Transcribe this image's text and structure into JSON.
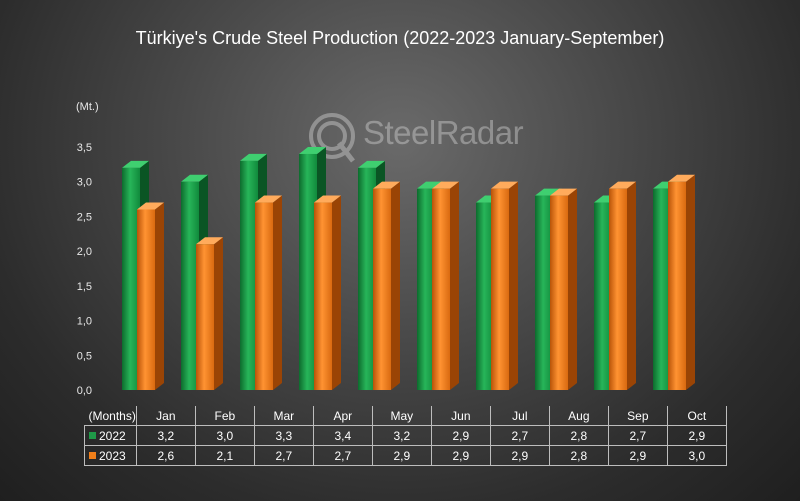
{
  "chart_data": {
    "type": "bar",
    "title": "Türkiye's Crude Steel Production (2022-2023 January-September)",
    "ylabel": "(Mt.)",
    "xlabel": "(Months)",
    "categories": [
      "Jan",
      "Feb",
      "Mar",
      "Apr",
      "May",
      "Jun",
      "Jul",
      "Aug",
      "Sep",
      "Oct"
    ],
    "series": [
      {
        "name": "2022",
        "values": [
          3.2,
          3.0,
          3.3,
          3.4,
          3.2,
          2.9,
          2.7,
          2.8,
          2.7,
          2.9
        ],
        "labels": [
          "3,2",
          "3,0",
          "3,3",
          "3,4",
          "3,2",
          "2,9",
          "2,7",
          "2,8",
          "2,7",
          "2,9"
        ],
        "color": "#1f9a48"
      },
      {
        "name": "2023",
        "values": [
          2.6,
          2.1,
          2.7,
          2.7,
          2.9,
          2.9,
          2.9,
          2.8,
          2.9,
          3.0
        ],
        "labels": [
          "2,6",
          "2,1",
          "2,7",
          "2,7",
          "2,9",
          "2,9",
          "2,9",
          "2,8",
          "2,9",
          "3,0"
        ],
        "color": "#f07f1a"
      }
    ],
    "ylim": [
      0,
      3.5
    ],
    "yticks": [
      "0,0",
      "0,5",
      "1,0",
      "1,5",
      "2,0",
      "2,5",
      "3,0",
      "3,5"
    ],
    "grid": false,
    "legend": "data-table"
  },
  "watermark": {
    "brand": "SteelRadar"
  }
}
